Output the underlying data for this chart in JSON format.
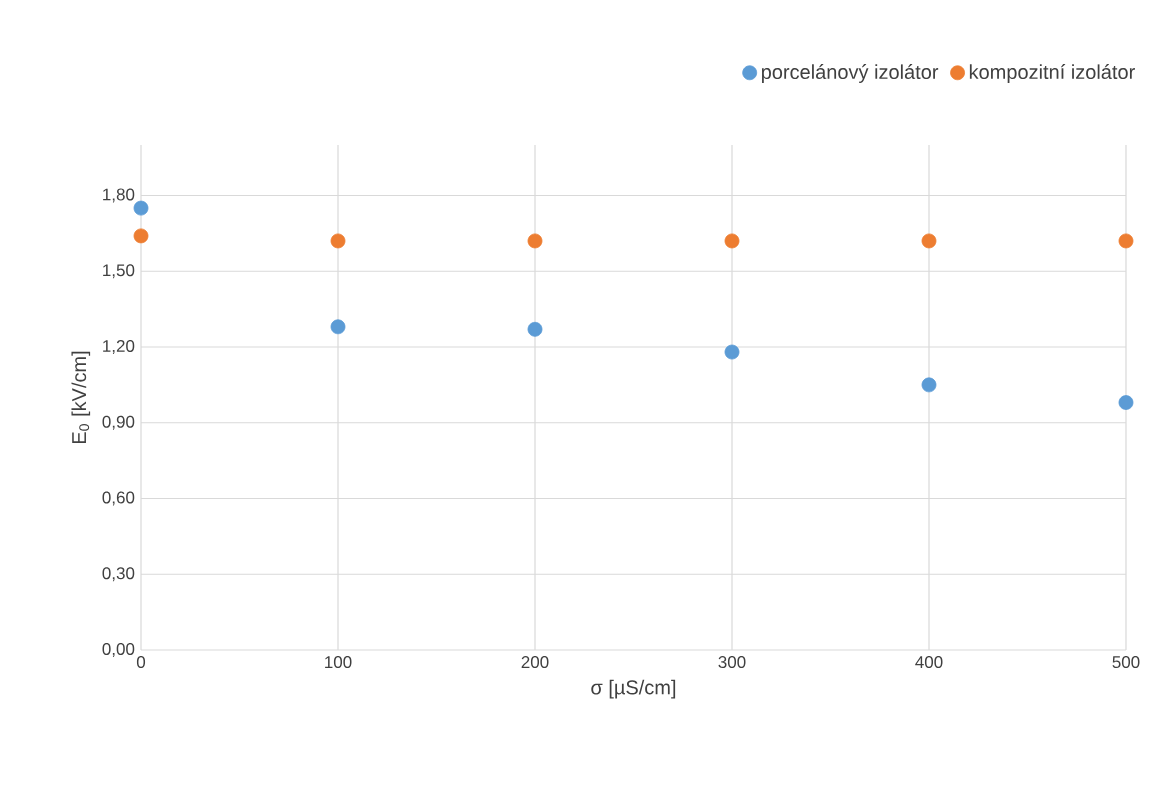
{
  "chart_data": {
    "type": "scatter",
    "xlabel": "σ [µS/cm]",
    "ylabel": "E$_{0}$ [kV/cm]",
    "x": [
      0,
      100,
      200,
      300,
      400,
      500
    ],
    "series": [
      {
        "name": "porcelánový izolátor",
        "color": "#5b9bd5",
        "values": [
          1.75,
          1.28,
          1.27,
          1.18,
          1.05,
          0.98
        ]
      },
      {
        "name": "kompozitní izolátor",
        "color": "#ed7d31",
        "values": [
          1.64,
          1.62,
          1.62,
          1.62,
          1.62,
          1.62
        ]
      }
    ],
    "xlim": [
      0,
      500
    ],
    "xticks": [
      0,
      100,
      200,
      300,
      400,
      500
    ],
    "ylim": [
      0,
      2.0
    ],
    "yticks": [
      {
        "value": 0,
        "label": "0,00"
      },
      {
        "value": 0.3,
        "label": "0,30"
      },
      {
        "value": 0.6,
        "label": "0,60"
      },
      {
        "value": 0.9,
        "label": "0,90"
      },
      {
        "value": 1.2,
        "label": "1,20"
      },
      {
        "value": 1.5,
        "label": "1,50"
      },
      {
        "value": 1.8,
        "label": "1,80"
      }
    ],
    "grid": true,
    "legend": "top right",
    "marker": "circle"
  }
}
